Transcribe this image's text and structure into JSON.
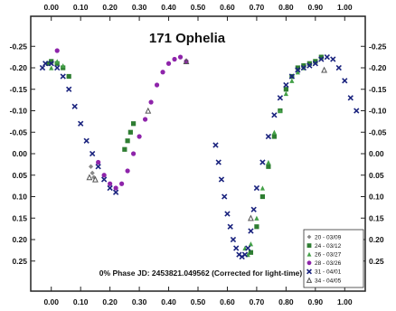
{
  "chart_data": {
    "type": "scatter",
    "title": "171 Ophelia",
    "annotation": "0% Phase JD:  2453821.049562   (Corrected for light-time)",
    "xlim": [
      -0.07,
      1.07
    ],
    "ylim": [
      -0.32,
      0.32
    ],
    "y_inverted": true,
    "x_ticks": [
      0.0,
      0.1,
      0.2,
      0.3,
      0.4,
      0.5,
      0.6,
      0.7,
      0.8,
      0.9,
      1.0
    ],
    "x_tick_labels": [
      "0.00",
      "0.10",
      "0.20",
      "0.30",
      "0.40",
      "0.50",
      "0.60",
      "0.70",
      "0.80",
      "0.90",
      "1.00"
    ],
    "y_ticks": [
      -0.25,
      -0.2,
      -0.15,
      -0.1,
      -0.05,
      0.0,
      0.05,
      0.1,
      0.15,
      0.2,
      0.25
    ],
    "y_tick_labels": [
      "-0.25",
      "-0.20",
      "-0.15",
      "-0.10",
      "-0.05",
      "0.00",
      "0.05",
      "0.10",
      "0.15",
      "0.20",
      "0.25"
    ],
    "grid": false,
    "legend_position": "bottom-right",
    "series": [
      {
        "name": "20 - 03/09",
        "color": "#888888",
        "marker": "diamond",
        "x": [
          0.135,
          0.14,
          0.145
        ],
        "y": [
          0.03,
          0.045,
          0.055
        ]
      },
      {
        "name": "24 - 03/12",
        "color": "#2e7d32",
        "marker": "square",
        "x": [
          -0.01,
          0.0,
          0.02,
          0.04,
          0.06,
          0.25,
          0.26,
          0.27,
          0.28,
          0.68,
          0.7,
          0.72,
          0.74,
          0.76,
          0.78,
          0.8,
          0.82,
          0.84,
          0.86,
          0.88,
          0.9,
          0.92
        ],
        "y": [
          -0.21,
          -0.215,
          -0.21,
          -0.2,
          -0.18,
          -0.01,
          -0.03,
          -0.05,
          -0.07,
          0.23,
          0.17,
          0.1,
          0.03,
          -0.04,
          -0.1,
          -0.15,
          -0.18,
          -0.2,
          -0.205,
          -0.21,
          -0.215,
          -0.225
        ]
      },
      {
        "name": "26 - 03/27",
        "color": "#43a047",
        "marker": "triangle",
        "x": [
          0.0,
          0.02,
          0.04,
          0.66,
          0.67,
          0.68,
          0.7,
          0.72,
          0.74,
          0.76,
          0.78,
          0.8,
          0.82,
          0.84,
          0.86
        ],
        "y": [
          -0.2,
          -0.215,
          -0.205,
          0.22,
          0.235,
          0.21,
          0.15,
          0.08,
          0.02,
          -0.05,
          -0.1,
          -0.14,
          -0.17,
          -0.19,
          -0.2
        ]
      },
      {
        "name": "28 - 03/26",
        "color": "#8e24aa",
        "marker": "circle",
        "x": [
          0.02,
          0.16,
          0.18,
          0.2,
          0.22,
          0.24,
          0.26,
          0.28,
          0.3,
          0.32,
          0.34,
          0.36,
          0.38,
          0.4,
          0.42,
          0.44,
          0.46
        ],
        "y": [
          -0.24,
          0.02,
          0.05,
          0.07,
          0.08,
          0.07,
          0.04,
          0.0,
          -0.04,
          -0.08,
          -0.12,
          -0.16,
          -0.19,
          -0.21,
          -0.22,
          -0.225,
          -0.215
        ]
      },
      {
        "name": "31 - 04/01",
        "color": "#1a237e",
        "marker": "x",
        "x": [
          -0.03,
          -0.02,
          0.0,
          0.02,
          0.04,
          0.06,
          0.08,
          0.1,
          0.12,
          0.14,
          0.16,
          0.18,
          0.2,
          0.22,
          0.56,
          0.57,
          0.58,
          0.59,
          0.6,
          0.61,
          0.62,
          0.63,
          0.64,
          0.65,
          0.66,
          0.67,
          0.68,
          0.69,
          0.7,
          0.72,
          0.74,
          0.76,
          0.78,
          0.8,
          0.82,
          0.84,
          0.86,
          0.88,
          0.9,
          0.92,
          0.94,
          0.96,
          0.98,
          1.0,
          1.02,
          1.04
        ],
        "y": [
          -0.2,
          -0.21,
          -0.21,
          -0.2,
          -0.18,
          -0.15,
          -0.11,
          -0.07,
          -0.03,
          0.0,
          0.03,
          0.06,
          0.08,
          0.09,
          -0.02,
          0.02,
          0.06,
          0.1,
          0.14,
          0.17,
          0.2,
          0.22,
          0.235,
          0.24,
          0.235,
          0.22,
          0.18,
          0.13,
          0.08,
          0.02,
          -0.04,
          -0.09,
          -0.13,
          -0.16,
          -0.18,
          -0.195,
          -0.2,
          -0.205,
          -0.21,
          -0.22,
          -0.225,
          -0.22,
          -0.2,
          -0.17,
          -0.13,
          -0.1
        ]
      },
      {
        "name": "34 - 04/05",
        "color": "#555555",
        "marker": "triangle-open",
        "x": [
          0.13,
          0.15,
          0.33,
          0.46,
          0.93,
          0.68
        ],
        "y": [
          0.055,
          0.06,
          -0.1,
          -0.215,
          -0.195,
          0.15
        ]
      }
    ]
  }
}
